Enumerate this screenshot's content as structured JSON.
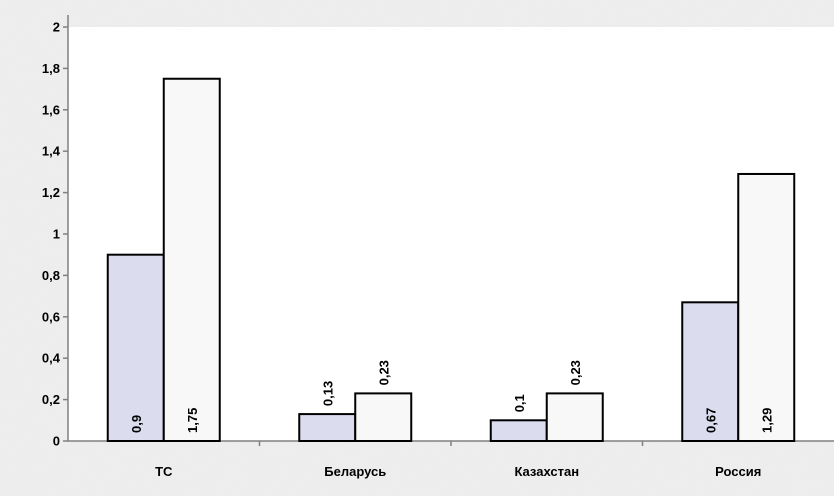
{
  "chart_data": {
    "type": "bar",
    "categories": [
      "ТС",
      "Беларусь",
      "Казахстан",
      "Россия"
    ],
    "series": [
      {
        "values": [
          0.9,
          0.13,
          0.1,
          0.67
        ],
        "labels": [
          "0,9",
          "0,13",
          "0,1",
          "0,67"
        ],
        "color": "#dcdcef"
      },
      {
        "values": [
          1.75,
          0.23,
          0.23,
          1.29
        ],
        "labels": [
          "1,75",
          "0,23",
          "0,23",
          "1,29"
        ],
        "color": "#f8f8f8"
      }
    ],
    "ylim": [
      0,
      2
    ],
    "yticks": [
      "0",
      "0,2",
      "0,4",
      "0,6",
      "0,8",
      "1",
      "1,2",
      "1,4",
      "1,6",
      "1,8",
      "2"
    ],
    "grid": false,
    "legend": "none",
    "background": "#ececec",
    "plot_background": "#ffffff"
  }
}
